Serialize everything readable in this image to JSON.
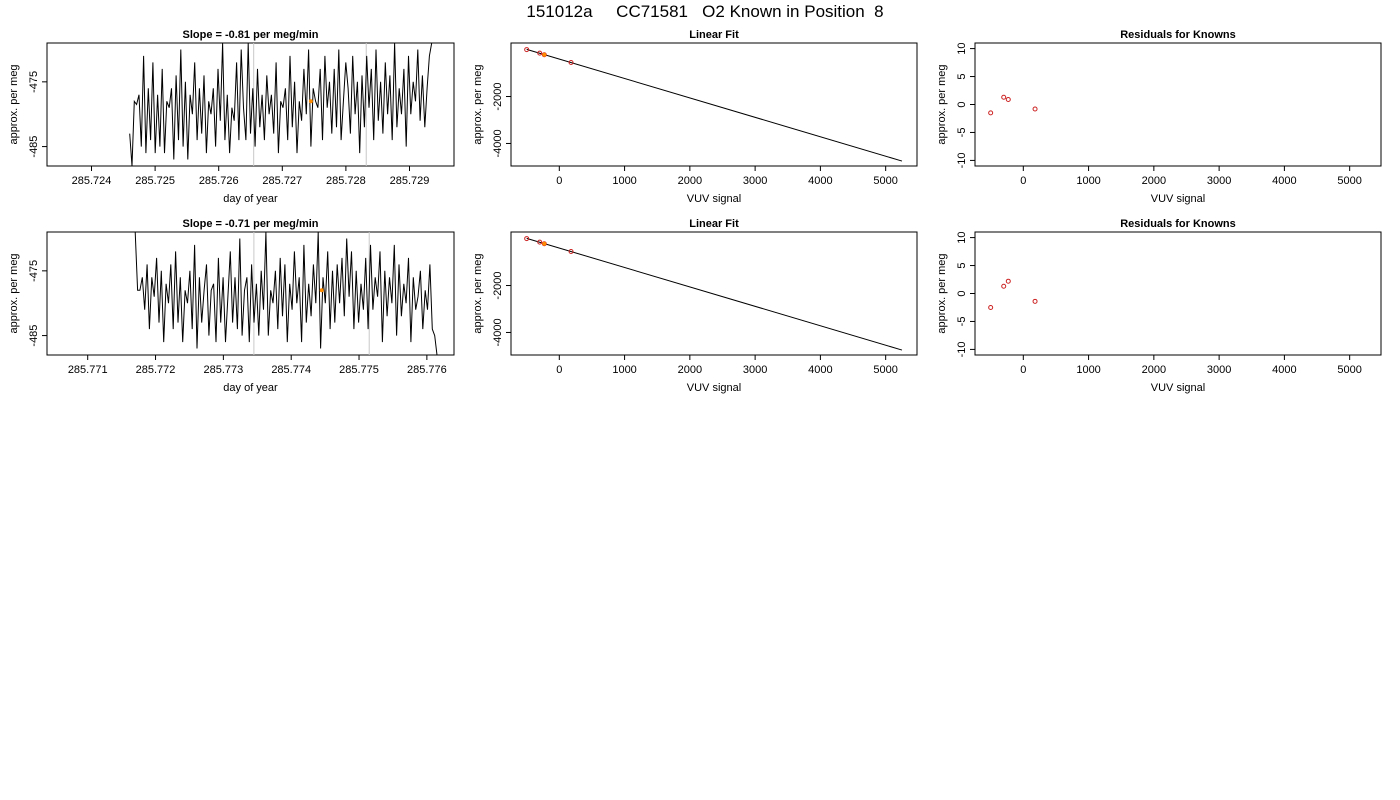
{
  "page_title": "151012a     CC71581   O2 Known in Position  8",
  "colors": {
    "line": "#000000",
    "known_point": "#cc2222",
    "highlight_point": "#ff8c00",
    "marker_line": "#c8c8c8"
  },
  "chart_data": [
    {
      "type": "line",
      "title": "Slope =  -0.81  per meg/min",
      "xlabel": "day of year",
      "ylabel": "approx. per meg",
      "xlim": [
        285.7233,
        285.7297
      ],
      "ylim": [
        -488,
        -469
      ],
      "xticks": [
        285.724,
        285.725,
        285.726,
        285.727,
        285.728,
        285.729
      ],
      "xtick_labels": [
        "285.724",
        "285.725",
        "285.726",
        "285.727",
        "285.728",
        "285.729"
      ],
      "yticks": [
        -475,
        -485
      ],
      "ytick_labels": [
        "-475",
        "-485"
      ],
      "series_start": 285.7246,
      "series_end": 285.72935,
      "series_y": [
        -483,
        -488,
        -478,
        -478.5,
        -477,
        -485,
        -471,
        -486,
        -476,
        -484,
        -472,
        -486,
        -477,
        -485,
        -473,
        -486,
        -478,
        -479,
        -476,
        -487,
        -474,
        -484,
        -470,
        -485,
        -475,
        -487,
        -477,
        -480,
        -472,
        -484,
        -476,
        -483,
        -474,
        -486,
        -478,
        -480,
        -476,
        -485,
        -473,
        -481,
        -469,
        -484,
        -477,
        -486,
        -479,
        -481,
        -472,
        -484,
        -470,
        -479,
        -484,
        -469,
        -483,
        -476,
        -485,
        -473,
        -482,
        -477,
        -484,
        -474,
        -480,
        -477,
        -483,
        -472,
        -486,
        -478,
        -479,
        -476,
        -484,
        -471,
        -482,
        -475,
        -486,
        -478,
        -481,
        -473,
        -480,
        -470,
        -485,
        -476,
        -478,
        -479,
        -473,
        -484,
        -471,
        -479,
        -475,
        -483,
        -473,
        -482,
        -470,
        -484,
        -478,
        -472,
        -476,
        -483,
        -471,
        -480,
        -475,
        -486,
        -474,
        -482,
        -471,
        -479,
        -473,
        -484,
        -470,
        -481,
        -475,
        -483,
        -472,
        -480,
        -474,
        -484,
        -469,
        -482,
        -476,
        -480,
        -473,
        -485,
        -471,
        -480,
        -475,
        -478,
        -470,
        -481,
        -474,
        -482,
        -476,
        -471,
        -469
      ],
      "vlines": [
        285.72655,
        285.72832
      ],
      "highlight_points": [
        {
          "x": 285.72745,
          "y": -478
        }
      ]
    },
    {
      "type": "scatter",
      "title": "Linear Fit",
      "xlabel": "VUV signal",
      "ylabel": "approx. per meg",
      "xlim": [
        -740,
        5480
      ],
      "ylim": [
        -4960,
        280
      ],
      "xticks": [
        0,
        1000,
        2000,
        3000,
        4000,
        5000
      ],
      "xtick_labels": [
        "0",
        "1000",
        "2000",
        "3000",
        "4000",
        "5000"
      ],
      "yticks": [
        -2000,
        -4000
      ],
      "ytick_labels": [
        "-2000",
        "-4000"
      ],
      "fit_line": {
        "x": [
          -500,
          5250
        ],
        "y": [
          10,
          -4750
        ]
      },
      "points": [
        {
          "x": -500,
          "y": 0
        },
        {
          "x": -300,
          "y": -150
        },
        {
          "x": -230,
          "y": -220
        },
        {
          "x": 180,
          "y": -550
        }
      ],
      "highlight_points": [
        {
          "x": -230,
          "y": -220
        }
      ]
    },
    {
      "type": "scatter",
      "title": "Residuals for Knowns",
      "xlabel": "VUV signal",
      "ylabel": "approx. per meg",
      "xlim": [
        -740,
        5480
      ],
      "ylim": [
        -11,
        11
      ],
      "xticks": [
        0,
        1000,
        2000,
        3000,
        4000,
        5000
      ],
      "xtick_labels": [
        "0",
        "1000",
        "2000",
        "3000",
        "4000",
        "5000"
      ],
      "yticks": [
        10,
        5,
        0,
        -5,
        -10
      ],
      "ytick_labels": [
        "10",
        "5",
        "0",
        "-5",
        "-10"
      ],
      "points": [
        {
          "x": -500,
          "y": -1.5
        },
        {
          "x": -300,
          "y": 1.3
        },
        {
          "x": -230,
          "y": 0.9
        },
        {
          "x": 180,
          "y": -0.8
        }
      ]
    },
    {
      "type": "line",
      "title": "Slope =  -0.71  per meg/min",
      "xlabel": "day of year",
      "ylabel": "approx. per meg",
      "xlim": [
        285.7704,
        285.7764
      ],
      "ylim": [
        -488,
        -469
      ],
      "xticks": [
        285.771,
        285.772,
        285.773,
        285.774,
        285.775,
        285.776
      ],
      "xtick_labels": [
        "285.771",
        "285.772",
        "285.773",
        "285.774",
        "285.775",
        "285.776"
      ],
      "yticks": [
        -475,
        -485
      ],
      "ytick_labels": [
        "-475",
        "-485"
      ],
      "series_start": 285.7717,
      "series_end": 285.77615,
      "series_y": [
        -469,
        -478,
        -478,
        -476,
        -481,
        -474,
        -484,
        -476,
        -479,
        -473,
        -483,
        -475,
        -486,
        -477,
        -480,
        -474,
        -484,
        -472,
        -483,
        -476,
        -486,
        -478,
        -480,
        -475,
        -484,
        -471,
        -487,
        -476,
        -483,
        -478,
        -474,
        -485,
        -478,
        -477,
        -486,
        -473,
        -483,
        -476,
        -486,
        -479,
        -472,
        -483,
        -476,
        -484,
        -470,
        -485,
        -478,
        -476,
        -486,
        -474,
        -483,
        -477,
        -485,
        -475,
        -481,
        -469,
        -485,
        -478,
        -480,
        -475,
        -484,
        -473,
        -482,
        -474,
        -486,
        -477,
        -481,
        -472,
        -480,
        -476,
        -486,
        -471,
        -483,
        -477,
        -482,
        -474,
        -480,
        -469,
        -487,
        -476,
        -480,
        -472,
        -484,
        -475,
        -483,
        -474,
        -480,
        -473,
        -482,
        -470,
        -479,
        -472,
        -484,
        -475,
        -483,
        -477,
        -481,
        -473,
        -484,
        -471,
        -481,
        -476,
        -479,
        -472,
        -486,
        -475,
        -482,
        -476,
        -480,
        -471,
        -485,
        -474,
        -482,
        -477,
        -480,
        -473,
        -486,
        -476,
        -481,
        -479,
        -475,
        -484,
        -478,
        -481,
        -474,
        -484,
        -485,
        -488
      ],
      "vlines": [
        285.77345,
        285.77515
      ],
      "highlight_points": [
        {
          "x": 285.77445,
          "y": -478
        }
      ]
    },
    {
      "type": "scatter",
      "title": "Linear Fit",
      "xlabel": "VUV signal",
      "ylabel": "approx. per meg",
      "xlim": [
        -740,
        5480
      ],
      "ylim": [
        -4960,
        280
      ],
      "xticks": [
        0,
        1000,
        2000,
        3000,
        4000,
        5000
      ],
      "xtick_labels": [
        "0",
        "1000",
        "2000",
        "3000",
        "4000",
        "5000"
      ],
      "yticks": [
        -2000,
        -4000
      ],
      "ytick_labels": [
        "-2000",
        "-4000"
      ],
      "fit_line": {
        "x": [
          -500,
          5250
        ],
        "y": [
          10,
          -4750
        ]
      },
      "points": [
        {
          "x": -500,
          "y": 0
        },
        {
          "x": -300,
          "y": -150
        },
        {
          "x": -230,
          "y": -220
        },
        {
          "x": 180,
          "y": -550
        }
      ],
      "highlight_points": [
        {
          "x": -230,
          "y": -220
        }
      ]
    },
    {
      "type": "scatter",
      "title": "Residuals for Knowns",
      "xlabel": "VUV signal",
      "ylabel": "approx. per meg",
      "xlim": [
        -740,
        5480
      ],
      "ylim": [
        -11,
        11
      ],
      "xticks": [
        0,
        1000,
        2000,
        3000,
        4000,
        5000
      ],
      "xtick_labels": [
        "0",
        "1000",
        "2000",
        "3000",
        "4000",
        "5000"
      ],
      "yticks": [
        10,
        5,
        0,
        -5,
        -10
      ],
      "ytick_labels": [
        "10",
        "5",
        "0",
        "-5",
        "-10"
      ],
      "points": [
        {
          "x": -500,
          "y": -2.5
        },
        {
          "x": -300,
          "y": 1.3
        },
        {
          "x": -230,
          "y": 2.2
        },
        {
          "x": 180,
          "y": -1.4
        }
      ]
    }
  ]
}
